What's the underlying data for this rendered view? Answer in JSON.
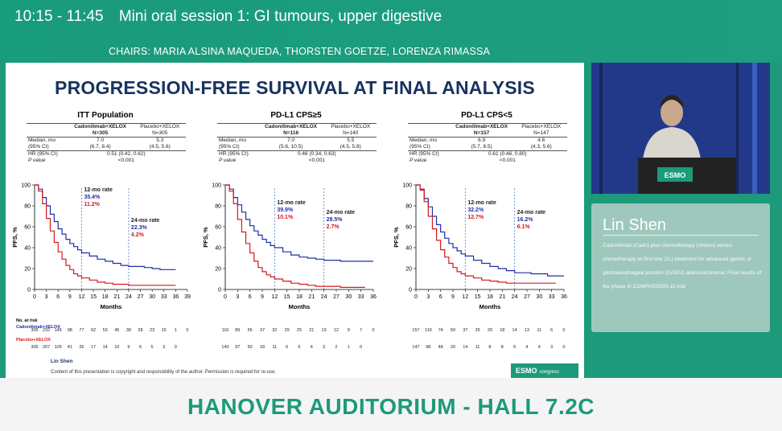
{
  "session": {
    "time": "10:15 - 11:45",
    "title": "Mini oral session 1: GI tumours, upper digestive",
    "chairs": "CHAIRS: MARIA ALSINA MAQUEDA, THORSTEN GOETZE, LORENZA RIMASSA"
  },
  "room": "HANOVER AUDITORIUM - HALL 7.2C",
  "speaker": {
    "name": "Lin Shen",
    "talk": "Cadonilimab (Cado) plus chemotherapy (chemo) versus chemotherapy as first-line (1L) treatment for advanced gastric or gastroesophageal junction (G/GEJ) adenocarcinoma: Final results of the phase III COMPASSION-15 trial"
  },
  "slide": {
    "title": "PROGRESSION-FREE SURVIVAL AT FINAL ANALYSIS",
    "footer_name": "Lin Shen",
    "footer_note": "Content of this presentation is copyright and responsibility of the author. Permission is required for re-use.",
    "logo_text": "ESMO",
    "logo_sub": "congress",
    "podium_logo": "ESMO",
    "ylabel": "PFS, %",
    "xlabel": "Months",
    "at_risk_label": "No. at risk",
    "arm_cado": "Cadonilimab+XELOX",
    "arm_placebo": "Placebo+XELOX",
    "table_labels": {
      "median": "Median, mo",
      "ci": "(95% CI)",
      "hr": "HR (95% CI)",
      "p": "P value"
    },
    "ytick_labels": [
      "0",
      "20",
      "40",
      "60",
      "80",
      "100"
    ],
    "colors": {
      "cado": "#1f2fa8",
      "placebo": "#d7191c",
      "title": "#17335f",
      "accent": "#1c9a7a"
    }
  },
  "chart_data": [
    {
      "type": "line",
      "title": "ITT Population",
      "xlabel": "Months",
      "ylabel": "PFS, %",
      "ylim": [
        0,
        100
      ],
      "xticks": [
        "0",
        "3",
        "6",
        "9",
        "12",
        "15",
        "18",
        "21",
        "24",
        "27",
        "30",
        "33",
        "36",
        "39"
      ],
      "table": {
        "cado_header": "Cadonilimab+XELOX",
        "cado_n": "N=305",
        "placebo_header": "Placebo+XELOX",
        "placebo_n": "N=305",
        "median_cado": "7.0",
        "median_placebo": "5.3",
        "ci_cado": "(6.7, 8.4)",
        "ci_placebo": "(4.5, 5.6)",
        "hr": "0.51 (0.42, 0.62)",
        "p": "<0.001"
      },
      "rate12": {
        "label": "12-mo rate",
        "cado": "35.4%",
        "placebo": "11.2%"
      },
      "rate24": {
        "label": "24-mo rate",
        "cado": "22.3%",
        "placebo": "4.2%"
      },
      "series": [
        {
          "name": "Cadonilimab+XELOX",
          "color": "#1f2fa8",
          "x": [
            0,
            1,
            2,
            3,
            4,
            5,
            6,
            7,
            8,
            9,
            10,
            11,
            12,
            14,
            16,
            18,
            20,
            22,
            24,
            26,
            28,
            30,
            32,
            34,
            36
          ],
          "y": [
            100,
            96,
            88,
            80,
            72,
            65,
            58,
            53,
            48,
            44,
            41,
            38,
            35,
            32,
            29,
            27,
            25,
            23,
            22,
            22,
            21,
            20,
            19,
            19,
            19
          ]
        },
        {
          "name": "Placebo+XELOX",
          "color": "#d7191c",
          "x": [
            0,
            1,
            2,
            3,
            4,
            5,
            6,
            7,
            8,
            9,
            10,
            11,
            12,
            14,
            16,
            18,
            20,
            22,
            24,
            26,
            28,
            30,
            32,
            34,
            36
          ],
          "y": [
            100,
            94,
            82,
            68,
            56,
            45,
            36,
            29,
            23,
            19,
            15,
            13,
            11,
            9,
            7,
            6,
            5,
            5,
            4,
            4,
            4,
            4,
            4,
            4,
            4
          ]
        }
      ],
      "at_risk": {
        "cado": [
          "305",
          "232",
          "145",
          "98",
          "77",
          "62",
          "53",
          "45",
          "38",
          "28",
          "23",
          "15",
          "1",
          "0"
        ],
        "placebo": [
          "305",
          "207",
          "105",
          "41",
          "26",
          "17",
          "14",
          "10",
          "9",
          "6",
          "5",
          "3",
          "0"
        ]
      }
    },
    {
      "type": "line",
      "title": "PD-L1 CPS≥5",
      "xlabel": "Months",
      "ylabel": "PFS, %",
      "ylim": [
        0,
        100
      ],
      "xticks": [
        "0",
        "3",
        "6",
        "9",
        "12",
        "15",
        "18",
        "21",
        "24",
        "27",
        "30",
        "33",
        "36"
      ],
      "table": {
        "cado_header": "Cadonilimab+XELOX",
        "cado_n": "N=116",
        "placebo_header": "Placebo+XELOX",
        "placebo_n": "N=140",
        "median_cado": "7.0",
        "median_placebo": "5.5",
        "ci_cado": "(5.6, 10.5)",
        "ci_placebo": "(4.5, 5.8)",
        "hr": "0.46 (0.34, 0.63)",
        "p": "<0.001"
      },
      "rate12": {
        "label": "12-mo rate",
        "cado": "39.9%",
        "placebo": "10.1%"
      },
      "rate24": {
        "label": "24-mo rate",
        "cado": "28.5%",
        "placebo": "2.7%"
      },
      "series": [
        {
          "name": "Cadonilimab+XELOX",
          "color": "#1f2fa8",
          "x": [
            0,
            1,
            2,
            3,
            4,
            5,
            6,
            7,
            8,
            9,
            10,
            11,
            12,
            14,
            16,
            18,
            20,
            22,
            24,
            26,
            28,
            30,
            32,
            34,
            36
          ],
          "y": [
            100,
            96,
            88,
            81,
            74,
            67,
            61,
            56,
            52,
            48,
            45,
            42,
            40,
            36,
            33,
            31,
            30,
            29,
            28,
            28,
            27,
            27,
            27,
            27,
            27
          ]
        },
        {
          "name": "Placebo+XELOX",
          "color": "#d7191c",
          "x": [
            0,
            1,
            2,
            3,
            4,
            5,
            6,
            7,
            8,
            9,
            10,
            11,
            12,
            14,
            16,
            18,
            20,
            22,
            24,
            26,
            28,
            30,
            32,
            34
          ],
          "y": [
            100,
            94,
            82,
            67,
            55,
            44,
            35,
            27,
            21,
            17,
            14,
            12,
            10,
            8,
            6,
            5,
            4,
            3,
            3,
            3,
            2,
            2,
            2,
            2
          ]
        }
      ],
      "at_risk": {
        "cado": [
          "116",
          "89",
          "55",
          "37",
          "32",
          "29",
          "25",
          "21",
          "19",
          "12",
          "9",
          "7",
          "0"
        ],
        "placebo": [
          "140",
          "97",
          "50",
          "18",
          "11",
          "6",
          "6",
          "4",
          "3",
          "2",
          "1",
          "0"
        ]
      }
    },
    {
      "type": "line",
      "title": "PD-L1 CPS<5",
      "xlabel": "Months",
      "ylabel": "PFS, %",
      "ylim": [
        0,
        100
      ],
      "xticks": [
        "0",
        "3",
        "6",
        "9",
        "12",
        "15",
        "18",
        "21",
        "24",
        "27",
        "30",
        "33",
        "36"
      ],
      "table": {
        "cado_header": "Cadonilimab+XELOX",
        "cado_n": "N=157",
        "placebo_header": "Placebo+XELOX",
        "placebo_n": "N=147",
        "median_cado": "6.9",
        "median_placebo": "4.6",
        "ci_cado": "(5.7, 8.5)",
        "ci_placebo": "(4.3, 5.6)",
        "hr": "0.61 (0.46, 0.80)",
        "p": "<0.001"
      },
      "rate12": {
        "label": "12-mo rate",
        "cado": "32.2%",
        "placebo": "12.7%"
      },
      "rate24": {
        "label": "24-mo rate",
        "cado": "16.2%",
        "placebo": "6.1%"
      },
      "series": [
        {
          "name": "Cadonilimab+XELOX",
          "color": "#1f2fa8",
          "x": [
            0,
            1,
            2,
            3,
            4,
            5,
            6,
            7,
            8,
            9,
            10,
            11,
            12,
            14,
            16,
            18,
            20,
            22,
            24,
            26,
            28,
            30,
            32,
            34,
            36
          ],
          "y": [
            100,
            96,
            87,
            79,
            70,
            62,
            55,
            49,
            44,
            40,
            37,
            34,
            32,
            28,
            25,
            22,
            20,
            18,
            16,
            16,
            15,
            15,
            13,
            13,
            13
          ]
        },
        {
          "name": "Placebo+XELOX",
          "color": "#d7191c",
          "x": [
            0,
            1,
            2,
            3,
            4,
            5,
            6,
            7,
            8,
            9,
            10,
            11,
            12,
            14,
            16,
            18,
            20,
            22,
            24,
            26,
            28,
            30,
            32,
            34
          ],
          "y": [
            100,
            95,
            84,
            70,
            58,
            47,
            38,
            31,
            25,
            21,
            17,
            15,
            13,
            11,
            9,
            8,
            7,
            6,
            6,
            6,
            6,
            6,
            6,
            6
          ]
        }
      ],
      "at_risk": {
        "cado": [
          "157",
          "119",
          "74",
          "50",
          "37",
          "25",
          "20",
          "18",
          "14",
          "13",
          "11",
          "6",
          "0"
        ],
        "placebo": [
          "147",
          "98",
          "48",
          "20",
          "14",
          "11",
          "8",
          "8",
          "6",
          "4",
          "4",
          "3",
          "0"
        ]
      }
    }
  ]
}
